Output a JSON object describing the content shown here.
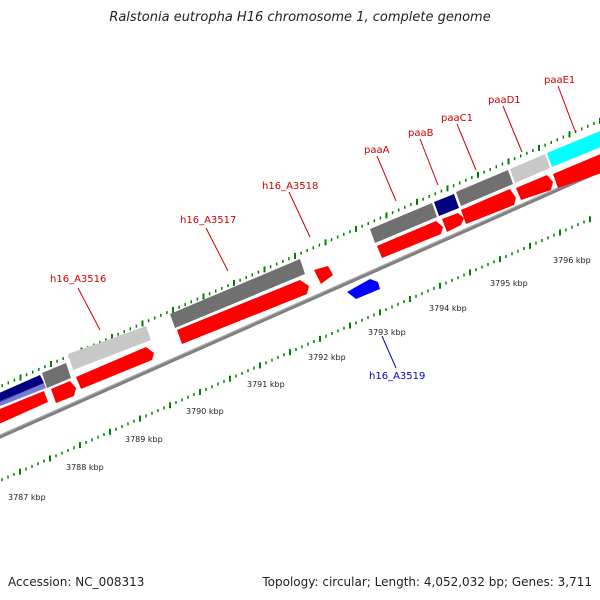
{
  "title": "Ralstonia eutropha H16 chromosome 1, complete genome",
  "footer": {
    "accession": "Accession: NC_008313",
    "stats": "Topology: circular; Length: 4,052,032 bp; Genes: 3,711"
  },
  "colors": {
    "label_top": "#cc0000",
    "label_bottom": "#0000cc",
    "tick": "#008000",
    "backbone": "#808080",
    "gene_red": "#ff0000",
    "gene_blue": "#0000ff",
    "gene_darkgray": "#707070",
    "gene_lightgray": "#c8c8c8",
    "gene_navy": "#000080",
    "gene_cyan": "#00ffff",
    "gene_slate": "#5858c0"
  },
  "gene_labels": [
    {
      "text": "h16_A3516",
      "pos": "top"
    },
    {
      "text": "h16_A3517",
      "pos": "top"
    },
    {
      "text": "h16_A3518",
      "pos": "top"
    },
    {
      "text": "paaA",
      "pos": "top"
    },
    {
      "text": "paaB",
      "pos": "top"
    },
    {
      "text": "paaC1",
      "pos": "top"
    },
    {
      "text": "paaD1",
      "pos": "top"
    },
    {
      "text": "paaE1",
      "pos": "top"
    },
    {
      "text": "h16_A3519",
      "pos": "bottom"
    }
  ],
  "scale_labels": [
    "3787 kbp",
    "3788 kbp",
    "3789 kbp",
    "3790 kbp",
    "3791 kbp",
    "3792 kbp",
    "3793 kbp",
    "3794 kbp",
    "3795 kbp",
    "3796 kbp"
  ]
}
